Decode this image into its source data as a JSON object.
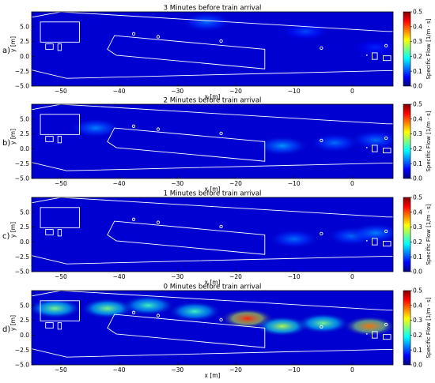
{
  "chart_data": [
    {
      "type": "heatmap",
      "panel_label": "a)",
      "title": "3 Minutes before train arrival",
      "xlabel": "x [m]",
      "ylabel": "y [m]",
      "xlim": [
        -55,
        7
      ],
      "ylim": [
        -5.0,
        7.5
      ],
      "xticks": [
        -50,
        -40,
        -30,
        -20,
        -10,
        0
      ],
      "yticks": [
        -5.0,
        -2.5,
        0.0,
        2.5,
        5.0
      ],
      "colorbar": {
        "label": "Specific Flow [1/m · s]",
        "range": [
          0.0,
          0.5
        ],
        "ticks": [
          0.0,
          0.1,
          0.2,
          0.3,
          0.4,
          0.5
        ],
        "colormap": "jet"
      },
      "hotspots": [
        {
          "x": -25,
          "y": 5.8,
          "value": 0.12
        },
        {
          "x": -8,
          "y": 4.2,
          "value": 0.1
        },
        {
          "x": 4,
          "y": 1.5,
          "value": 0.08
        }
      ]
    },
    {
      "type": "heatmap",
      "panel_label": "b)",
      "title": "2 Minutes before train arrival",
      "xlabel": "x [m]",
      "ylabel": "y [m]",
      "xlim": [
        -55,
        7
      ],
      "ylim": [
        -5.0,
        7.5
      ],
      "xticks": [
        -50,
        -40,
        -30,
        -20,
        -10,
        0
      ],
      "yticks": [
        -5.0,
        -2.5,
        0.0,
        2.5,
        5.0
      ],
      "colorbar": {
        "label": "Specific Flow [1/m · s]",
        "range": [
          0.0,
          0.5
        ],
        "ticks": [
          0.0,
          0.1,
          0.2,
          0.3,
          0.4,
          0.5
        ],
        "colormap": "jet"
      },
      "hotspots": [
        {
          "x": -44,
          "y": 3.5,
          "value": 0.13
        },
        {
          "x": -12,
          "y": 0.5,
          "value": 0.14
        },
        {
          "x": -3,
          "y": 1.0,
          "value": 0.12
        },
        {
          "x": 4,
          "y": 1.5,
          "value": 0.12
        }
      ]
    },
    {
      "type": "heatmap",
      "panel_label": "c)",
      "title": "1 Minutes before train arrival",
      "xlabel": "x [m]",
      "ylabel": "y [m]",
      "xlim": [
        -55,
        7
      ],
      "ylim": [
        -5.0,
        7.5
      ],
      "xticks": [
        -50,
        -40,
        -30,
        -20,
        -10,
        0
      ],
      "yticks": [
        -5.0,
        -2.5,
        0.0,
        2.5,
        5.0
      ],
      "colorbar": {
        "label": "Specific Flow [1/m · s]",
        "range": [
          0.0,
          0.5
        ],
        "ticks": [
          0.0,
          0.1,
          0.2,
          0.3,
          0.4,
          0.5
        ],
        "colormap": "jet"
      },
      "hotspots": [
        {
          "x": -10,
          "y": 0.5,
          "value": 0.12
        },
        {
          "x": 0,
          "y": 1.0,
          "value": 0.12
        },
        {
          "x": 4,
          "y": 1.5,
          "value": 0.13
        }
      ]
    },
    {
      "type": "heatmap",
      "panel_label": "d)",
      "title": "0 Minutes before train arrival",
      "xlabel": "x [m]",
      "ylabel": "y [m]",
      "xlim": [
        -55,
        7
      ],
      "ylim": [
        -5.0,
        7.5
      ],
      "xticks": [
        -50,
        -40,
        -30,
        -20,
        -10,
        0
      ],
      "yticks": [
        -5.0,
        -2.5,
        0.0,
        2.5,
        5.0
      ],
      "colorbar": {
        "label": "Specific Flow [1/m · s]",
        "range": [
          0.0,
          0.5
        ],
        "ticks": [
          0.0,
          0.1,
          0.2,
          0.3,
          0.4,
          0.5
        ],
        "colormap": "jet"
      },
      "hotspots": [
        {
          "x": -51,
          "y": 4.5,
          "value": 0.25
        },
        {
          "x": -42,
          "y": 4.5,
          "value": 0.25
        },
        {
          "x": -35,
          "y": 5.0,
          "value": 0.22
        },
        {
          "x": -27,
          "y": 4.0,
          "value": 0.22
        },
        {
          "x": -18,
          "y": 2.8,
          "value": 0.42
        },
        {
          "x": -12,
          "y": 1.5,
          "value": 0.28
        },
        {
          "x": -5,
          "y": 2.0,
          "value": 0.25
        },
        {
          "x": 3,
          "y": 1.5,
          "value": 0.38
        }
      ]
    }
  ]
}
